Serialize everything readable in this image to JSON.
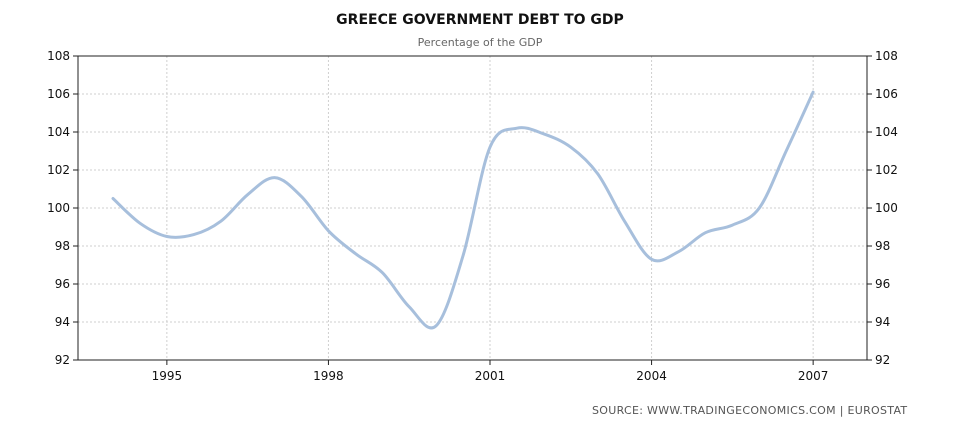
{
  "chart_data": {
    "type": "line",
    "title": "GREECE GOVERNMENT DEBT TO GDP",
    "subtitle": "Percentage of the GDP",
    "xlabel": "",
    "ylabel": "",
    "xlim": [
      1993.35,
      2008.0
    ],
    "ylim": [
      92,
      108
    ],
    "x_ticks": [
      "1995",
      "1998",
      "2001",
      "2004",
      "2007"
    ],
    "y_ticks": [
      "92",
      "94",
      "96",
      "98",
      "100",
      "102",
      "104",
      "106",
      "108"
    ],
    "grid": true,
    "series": [
      {
        "color": "#a7bfdc",
        "x": [
          1994,
          1994.5,
          1995,
          1995.5,
          1996,
          1996.5,
          1997,
          1997.5,
          1998,
          1998.5,
          1999,
          1999.5,
          2000,
          2000.5,
          2001,
          2001.5,
          2002,
          2002.5,
          2003,
          2003.5,
          2004,
          2004.5,
          2005,
          2005.5,
          2006,
          2006.5,
          2007
        ],
        "values": [
          100.5,
          99.2,
          98.5,
          98.6,
          99.3,
          100.7,
          101.6,
          100.6,
          98.8,
          97.6,
          96.6,
          94.8,
          93.8,
          97.5,
          103.2,
          104.2,
          103.9,
          103.2,
          101.8,
          99.3,
          97.3,
          97.7,
          98.7,
          99.1,
          100.0,
          103.0,
          106.1
        ]
      }
    ]
  },
  "source": "SOURCE:  WWW.TRADINGECONOMICS.COM  |  EUROSTAT"
}
